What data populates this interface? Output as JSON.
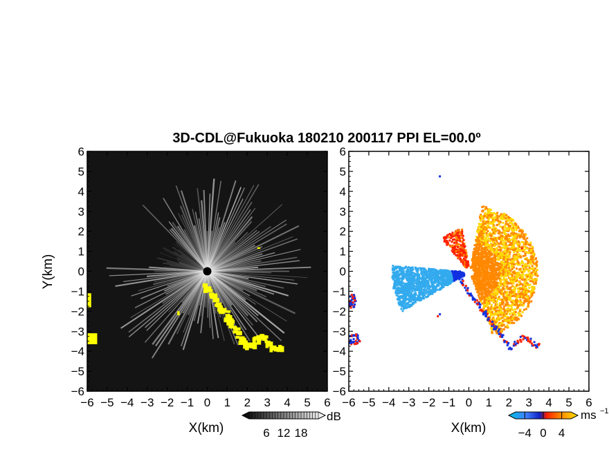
{
  "chart_data": {
    "title": "3D-CDL@Fukuoka 180210 200117 PPI EL=00.0º",
    "type": "heatmap",
    "panels": [
      {
        "name": "reflectivity",
        "xlabel": "X(km)",
        "ylabel": "Y(km)",
        "xlim": [
          -6,
          6
        ],
        "ylim": [
          -6,
          6
        ],
        "x_ticks": [
          "−6",
          "−5",
          "−4",
          "−3",
          "−2",
          "−1",
          "0",
          "1",
          "2",
          "3",
          "4",
          "5",
          "6"
        ],
        "y_ticks": [
          "6",
          "5",
          "4",
          "3",
          "2",
          "1",
          "0",
          "−1",
          "−2",
          "−3",
          "−4",
          "−5",
          "−6"
        ],
        "background_color": "#141414",
        "highlight_color": "#ffff00",
        "colorbar": {
          "unit": "dB",
          "tick_labels": [
            "6",
            "12",
            "18"
          ],
          "range": [
            0,
            24
          ]
        }
      },
      {
        "name": "doppler-velocity",
        "xlabel": "X(km)",
        "xlim": [
          -6,
          6
        ],
        "ylim": [
          -6,
          6
        ],
        "x_ticks": [
          "−6",
          "−5",
          "−4",
          "−3",
          "−2",
          "−1",
          "0",
          "1",
          "2",
          "3",
          "4",
          "5",
          "6"
        ],
        "y_ticks": [
          "6",
          "5",
          "4",
          "3",
          "2",
          "1",
          "0",
          "−1",
          "−2",
          "−3",
          "−4",
          "−5",
          "−6"
        ],
        "colorbar": {
          "unit": "ms",
          "unit_exponent": "−1",
          "tick_labels": [
            "−4",
            "0",
            "4"
          ],
          "range": [
            -6,
            6
          ]
        }
      }
    ]
  },
  "colors": {
    "approaching_light": "#33aaee",
    "approaching_dark": "#1030e0",
    "receding_orange": "#ff8800",
    "receding_yellow": "#ffd800",
    "receding_red": "#ff2000"
  }
}
